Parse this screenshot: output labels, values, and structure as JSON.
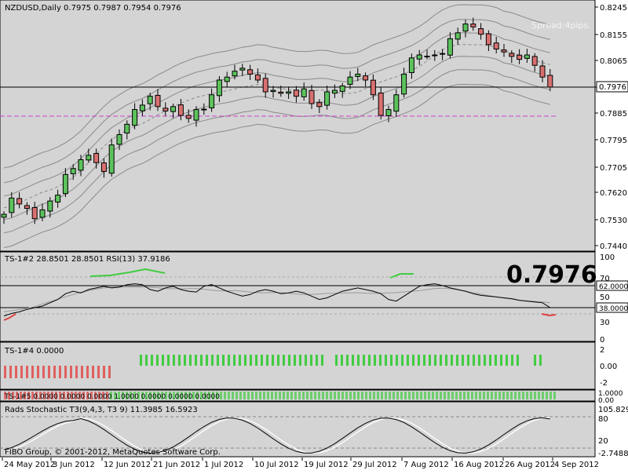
{
  "symbol_header": "NZDUSD,Daily  0.7975 0.7987 0.7954 0.7976",
  "spread_text": "Spread:4pips.",
  "current_price_label": "0.7976",
  "big_price": "0.7976",
  "copyright": "FIBO Group, © 2001-2012, MetaQuotes Software Corp.",
  "colors": {
    "background": "#d4d4d4",
    "bull_candle": "#5cc35c",
    "bear_candle": "#d97070",
    "price_line": "#000000",
    "envelope": "#8a8a8a",
    "magenta_level": "#cc44cc",
    "hist_red": "#e06060",
    "hist_green": "#40cc40"
  },
  "price_axis": [
    "0.8245",
    "0.8155",
    "0.8065",
    "0.7976",
    "0.7885",
    "0.7795",
    "0.7705",
    "0.7620",
    "0.7530",
    "0.7440"
  ],
  "date_axis": [
    "24 May 2012",
    "3 Jun 2012",
    "12 Jun 2012",
    "21 Jun 2012",
    "1 Jul 2012",
    "10 Jul 2012",
    "19 Jul 2012",
    "29 Jul 2012",
    "7 Aug 2012",
    "16 Aug 2012",
    "26 Aug 2012",
    "4 Sep 2012"
  ],
  "rsi": {
    "label": "TS-1#2 28.8501 28.8501  RSI(13) 37.9186",
    "axis": [
      "100",
      "70",
      "62.0000",
      "50",
      "38.0000",
      "30",
      "0"
    ]
  },
  "hist1": {
    "label": "TS-1#4 0.0000",
    "axis": [
      "2",
      "0.00",
      "-2"
    ]
  },
  "hist2": {
    "label": "TS-1#5 0.0000 0.0000 0.0000 1.0000 0.0000 0.0000 0.0000",
    "axis": [
      "1.0000",
      "0.00"
    ]
  },
  "stoch": {
    "label": "Rads Stochastic T3(9,4,3, T3 9) 11.3985 16.5923",
    "axis": [
      "105.8296",
      "80",
      "20",
      "-2.7488"
    ]
  }
}
